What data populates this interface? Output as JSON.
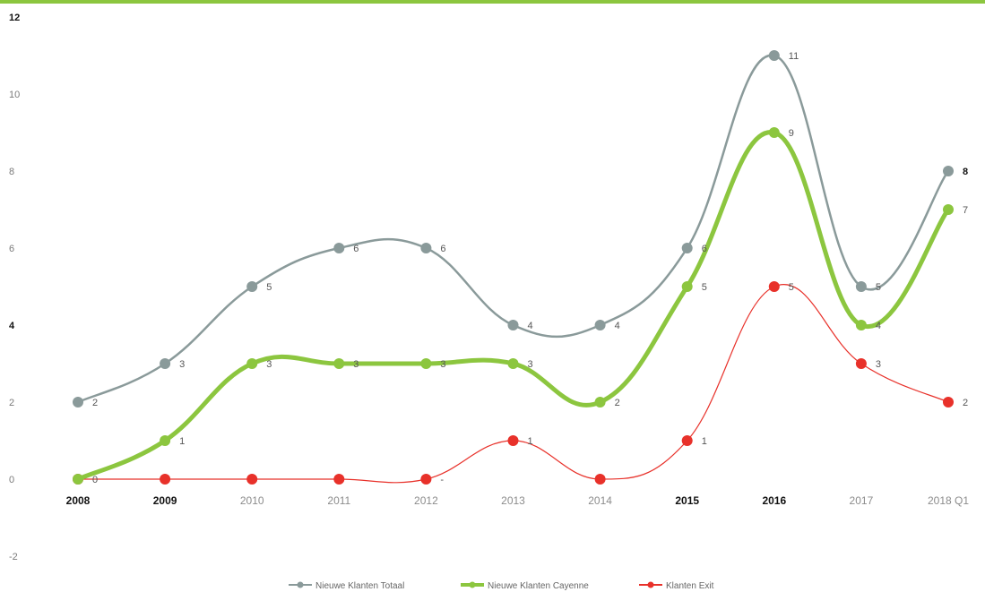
{
  "chart_data": {
    "type": "line",
    "title": "",
    "xlabel": "",
    "ylabel": "",
    "ylim": [
      -2,
      12
    ],
    "yticks": [
      "-2",
      "0",
      "2",
      "4",
      "6",
      "8",
      "10",
      "12"
    ],
    "categories": [
      "2008",
      "2009",
      "2010",
      "2011",
      "2012",
      "2013",
      "2014",
      "2015",
      "2016",
      "2017",
      "2018 Q1"
    ],
    "series": [
      {
        "name": "Nieuwe Klanten Totaal",
        "color": "#8a9a9a",
        "values": [
          2,
          3,
          5,
          6,
          6,
          4,
          4,
          6,
          11,
          5,
          8
        ],
        "labels": [
          "2",
          "3",
          "5",
          "6",
          "6",
          "4",
          "4",
          "6",
          "11",
          "5",
          "8"
        ]
      },
      {
        "name": "Nieuwe Klanten Cayenne",
        "color": "#8cc63f",
        "values": [
          0,
          1,
          3,
          3,
          3,
          3,
          2,
          5,
          9,
          4,
          7
        ],
        "labels": [
          "0",
          "1",
          "3",
          "3",
          "3",
          "3",
          "2",
          "5",
          "9",
          "4",
          "7"
        ]
      },
      {
        "name": "Klanten Exit",
        "color": "#e8312a",
        "values": [
          0,
          0,
          0,
          0,
          0,
          1,
          0,
          1,
          5,
          3,
          2
        ],
        "labels": [
          "",
          "",
          "",
          "",
          "-",
          "1",
          "",
          "1",
          "5",
          "3",
          "2"
        ]
      }
    ],
    "legend_position": "bottom",
    "grid": false
  }
}
